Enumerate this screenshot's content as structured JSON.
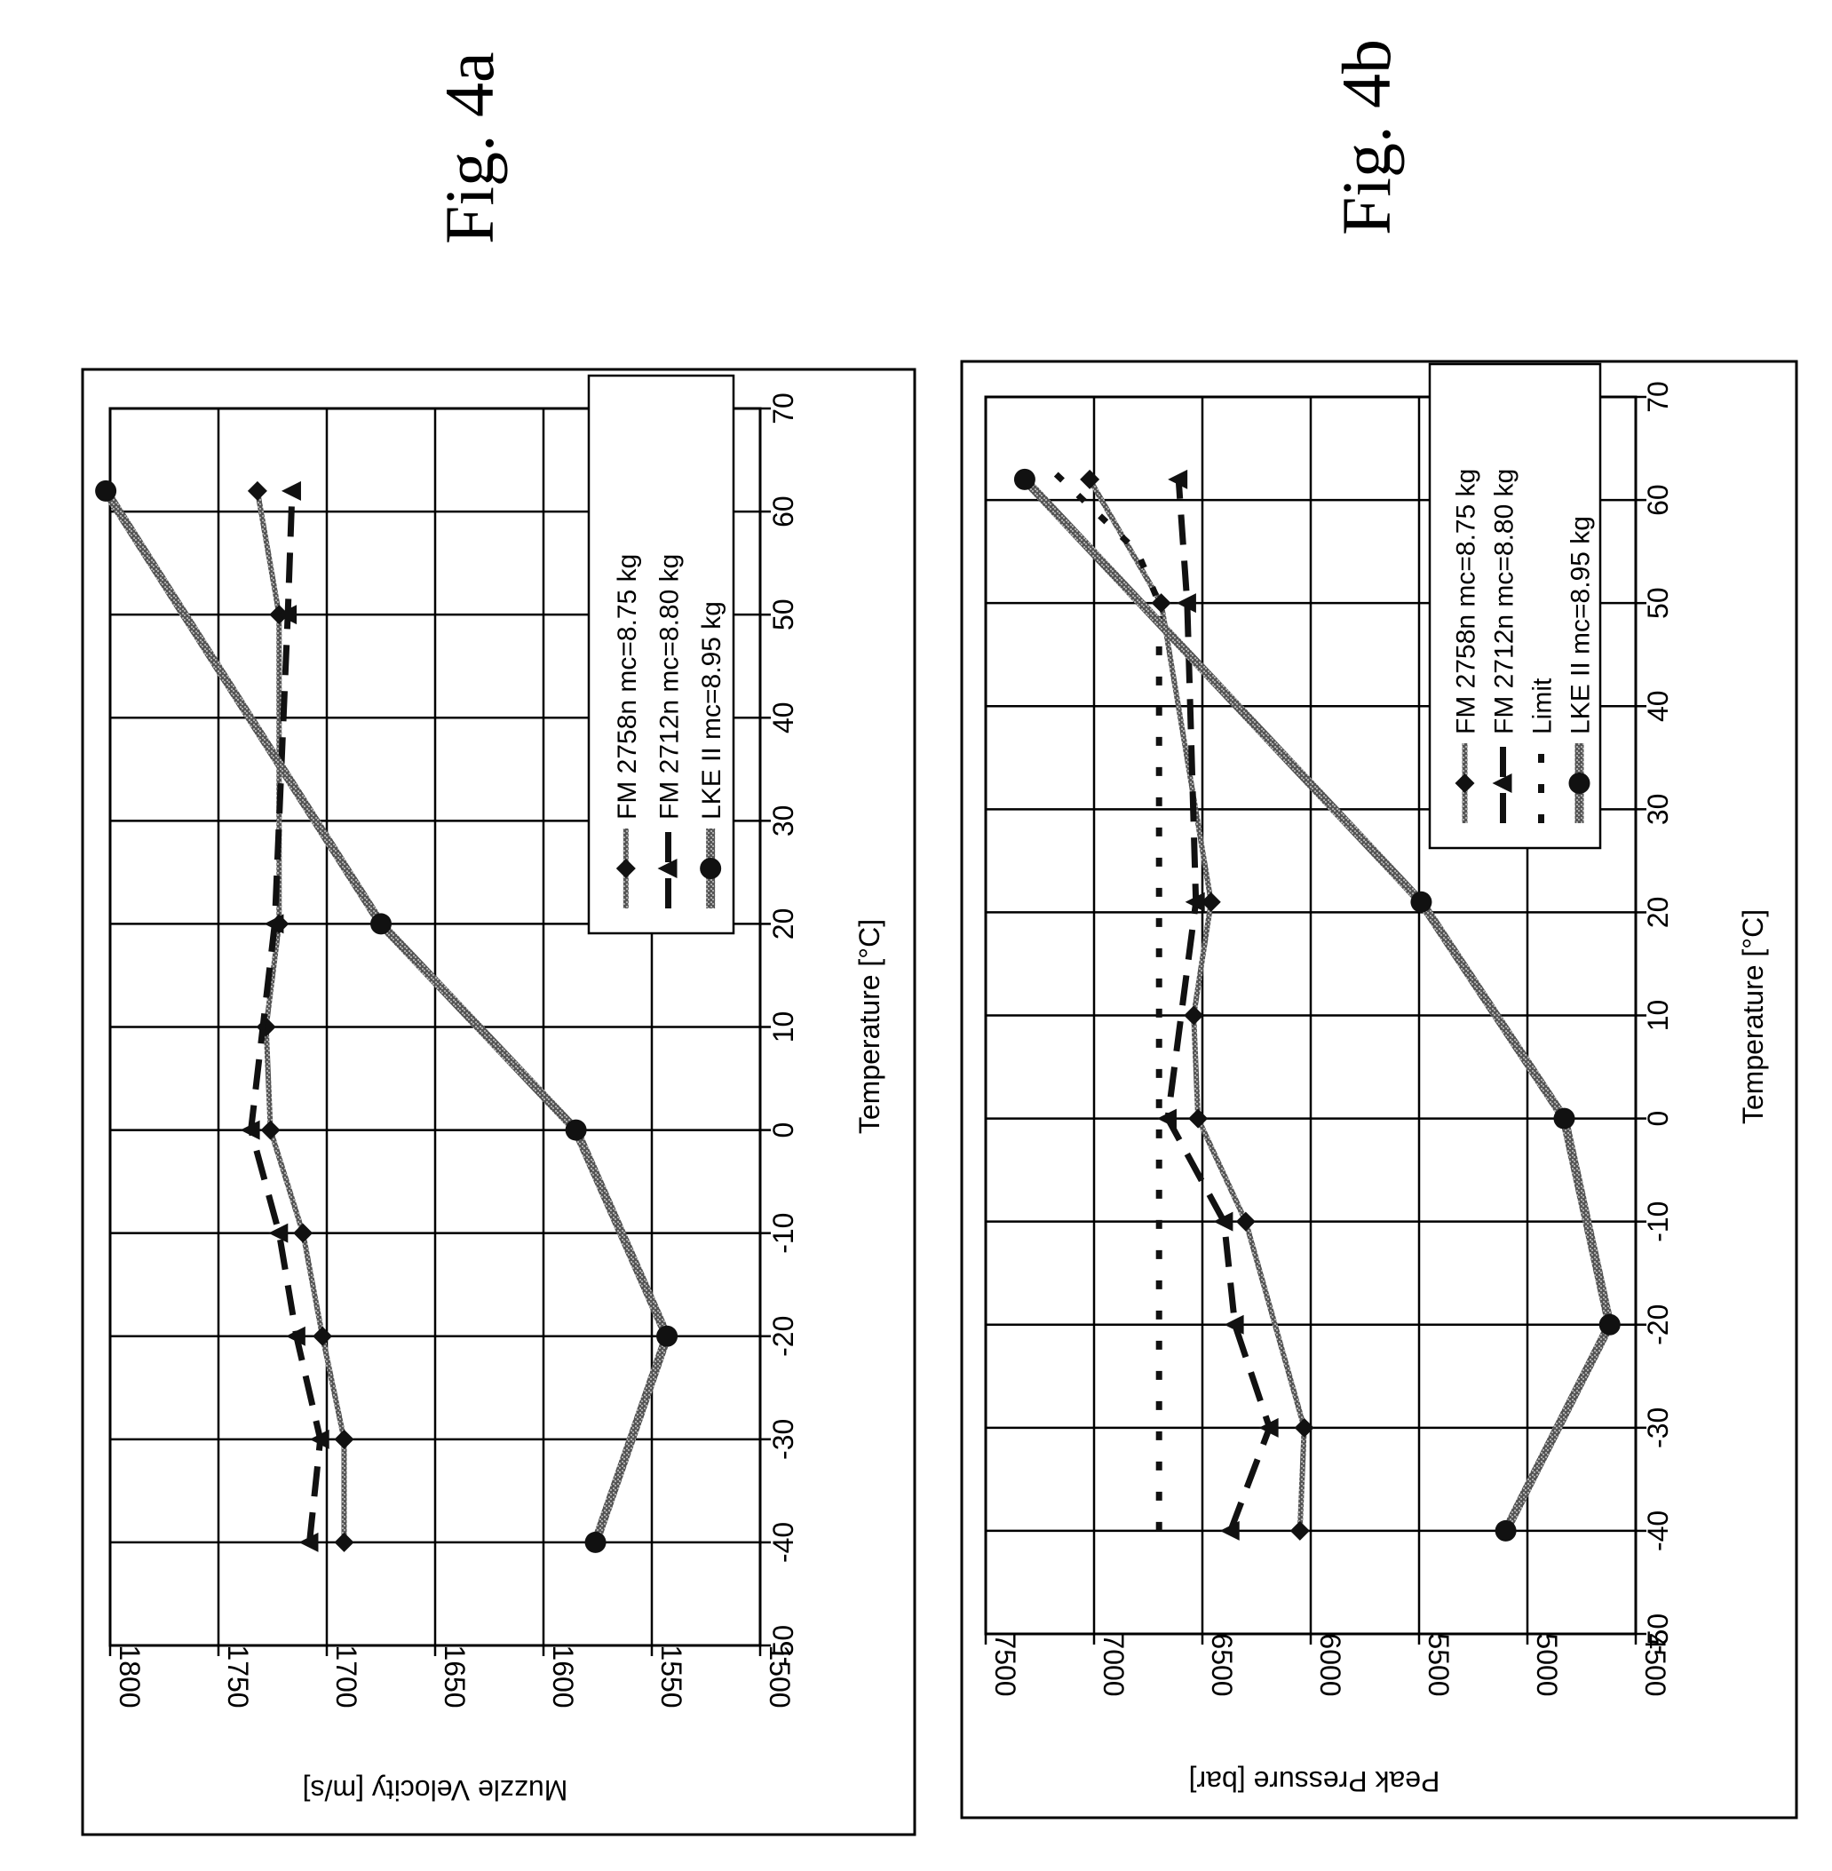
{
  "chart_data": [
    {
      "id": "fig4a",
      "type": "line",
      "figure_label": "Fig. 4a",
      "title": "",
      "xlabel": "Temperature  [°C]",
      "ylabel": "Muzzle Velocity  [m/s]",
      "xlim": [
        -50,
        70
      ],
      "ylim": [
        1500,
        1800
      ],
      "x_ticks": [
        "-50",
        "-40",
        "-30",
        "-20",
        "-10",
        "0",
        "10",
        "20",
        "30",
        "40",
        "50",
        "60",
        "70"
      ],
      "y_ticks": [
        "1500",
        "1550",
        "1600",
        "1650",
        "1700",
        "1750",
        "1800"
      ],
      "grid": true,
      "legend_position": "top-right",
      "series": [
        {
          "name": "FM 2758n  mc=8.75 kg",
          "marker": "diamond",
          "style": "solid",
          "x": [
            -40,
            -30,
            -20,
            -10,
            0,
            10,
            20,
            50,
            62
          ],
          "y": [
            1692,
            1692,
            1702,
            1711,
            1726,
            1728,
            1722,
            1722,
            1732
          ]
        },
        {
          "name": "FM 2712n  mc=8.80 kg",
          "marker": "triangle",
          "style": "dash",
          "x": [
            -40,
            -30,
            -20,
            -10,
            0,
            20,
            50,
            62
          ],
          "y": [
            1708,
            1703,
            1714,
            1722,
            1735,
            1724,
            1718,
            1716
          ]
        },
        {
          "name": "LKE II  mc=8.95 kg",
          "marker": "circle",
          "style": "solid-thick",
          "x": [
            -40,
            -20,
            0,
            20,
            62
          ],
          "y": [
            1576,
            1543,
            1585,
            1675,
            1802
          ]
        }
      ]
    },
    {
      "id": "fig4b",
      "type": "line",
      "figure_label": "Fig. 4b",
      "title": "",
      "xlabel": "Temperature  [°C]",
      "ylabel": "Peak Pressure  [bar]",
      "xlim": [
        -50,
        70
      ],
      "ylim": [
        4500,
        7500
      ],
      "x_ticks": [
        "-50",
        "-40",
        "-30",
        "-20",
        "-10",
        "0",
        "10",
        "20",
        "30",
        "40",
        "50",
        "60",
        "70"
      ],
      "y_ticks": [
        "4500",
        "5000",
        "5500",
        "6000",
        "6500",
        "7000",
        "7500"
      ],
      "grid": true,
      "legend_position": "top-right",
      "series": [
        {
          "name": "FM 2758n  mc=8.75 kg",
          "marker": "diamond",
          "style": "solid",
          "x": [
            -40,
            -30,
            -10,
            0,
            10,
            21,
            50,
            62
          ],
          "y": [
            6050,
            6030,
            6300,
            6520,
            6540,
            6460,
            6690,
            7020
          ]
        },
        {
          "name": "FM 2712n  mc=8.80 kg",
          "marker": "triangle",
          "style": "dash",
          "x": [
            -40,
            -30,
            -20,
            -10,
            0,
            21,
            50,
            62
          ],
          "y": [
            6370,
            6190,
            6350,
            6400,
            6660,
            6530,
            6570,
            6610
          ]
        },
        {
          "name": "Limit",
          "marker": "none",
          "style": "limit",
          "x": [
            -40,
            50,
            55,
            63
          ],
          "y": [
            6700,
            6700,
            6800,
            7200
          ]
        },
        {
          "name": "LKE II  mc=8.95 kg",
          "marker": "circle",
          "style": "solid-thick",
          "x": [
            -40,
            -20,
            0,
            21,
            62
          ],
          "y": [
            5100,
            4620,
            4830,
            5490,
            7320
          ]
        }
      ]
    }
  ]
}
